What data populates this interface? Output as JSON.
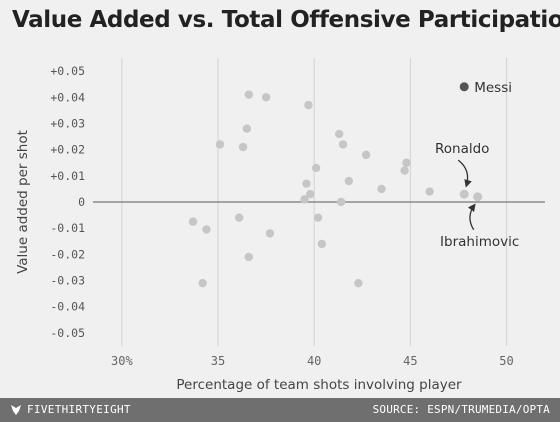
{
  "title": "Value Added vs. Total Offensive Participation",
  "footer": {
    "brand": "FIVETHIRTYEIGHT",
    "source": "SOURCE: ESPN/TRUMEDIA/OPTA"
  },
  "chart_data": {
    "type": "scatter",
    "xlabel": "Percentage of team shots involving player",
    "ylabel": "Value added per shot",
    "xlim": [
      28.5,
      52
    ],
    "ylim": [
      -0.055,
      0.055
    ],
    "x_ticks": [
      30,
      35,
      40,
      45,
      50
    ],
    "x_tick_labels": [
      "30%",
      "35",
      "40",
      "45",
      "50"
    ],
    "y_ticks": [
      0.05,
      0.04,
      0.03,
      0.02,
      0.01,
      0,
      -0.01,
      -0.02,
      -0.03,
      -0.04,
      -0.05
    ],
    "y_tick_labels": [
      "+0.05",
      "+0.04",
      "+0.03",
      "+0.02",
      "+0.01",
      "0",
      "-0.01",
      "-0.02",
      "-0.03",
      "-0.04",
      "-0.05"
    ],
    "grid": "vertical",
    "colors": {
      "point": "#c6c6c6",
      "highlight": "#555555",
      "grid": "#d2d2d2",
      "zero_line": "#777777"
    },
    "points": [
      {
        "x": 36.6,
        "y": 0.041
      },
      {
        "x": 37.5,
        "y": 0.04
      },
      {
        "x": 39.7,
        "y": 0.037
      },
      {
        "x": 36.5,
        "y": 0.028
      },
      {
        "x": 41.3,
        "y": 0.026
      },
      {
        "x": 35.1,
        "y": 0.022
      },
      {
        "x": 36.3,
        "y": 0.021
      },
      {
        "x": 41.5,
        "y": 0.022
      },
      {
        "x": 42.7,
        "y": 0.018
      },
      {
        "x": 44.8,
        "y": 0.015
      },
      {
        "x": 40.1,
        "y": 0.013
      },
      {
        "x": 44.7,
        "y": 0.012
      },
      {
        "x": 39.6,
        "y": 0.007
      },
      {
        "x": 41.8,
        "y": 0.008
      },
      {
        "x": 43.5,
        "y": 0.005
      },
      {
        "x": 46.0,
        "y": 0.004
      },
      {
        "x": 39.8,
        "y": 0.003
      },
      {
        "x": 39.5,
        "y": 0.001
      },
      {
        "x": 41.4,
        "y": 0.0
      },
      {
        "x": 33.7,
        "y": -0.0075
      },
      {
        "x": 34.4,
        "y": -0.0105
      },
      {
        "x": 36.1,
        "y": -0.006
      },
      {
        "x": 40.2,
        "y": -0.006
      },
      {
        "x": 37.7,
        "y": -0.012
      },
      {
        "x": 40.4,
        "y": -0.016
      },
      {
        "x": 36.6,
        "y": -0.021
      },
      {
        "x": 34.2,
        "y": -0.031
      },
      {
        "x": 42.3,
        "y": -0.031
      }
    ],
    "labeled_points": [
      {
        "name": "Messi",
        "x": 47.8,
        "y": 0.044,
        "label": "Messi",
        "highlight": true
      },
      {
        "name": "Ronaldo",
        "x": 47.8,
        "y": 0.003,
        "label": "Ronaldo",
        "highlight": false
      },
      {
        "name": "Ibrahimovic",
        "x": 48.5,
        "y": 0.002,
        "label": "Ibrahimovic",
        "highlight": false
      }
    ]
  }
}
